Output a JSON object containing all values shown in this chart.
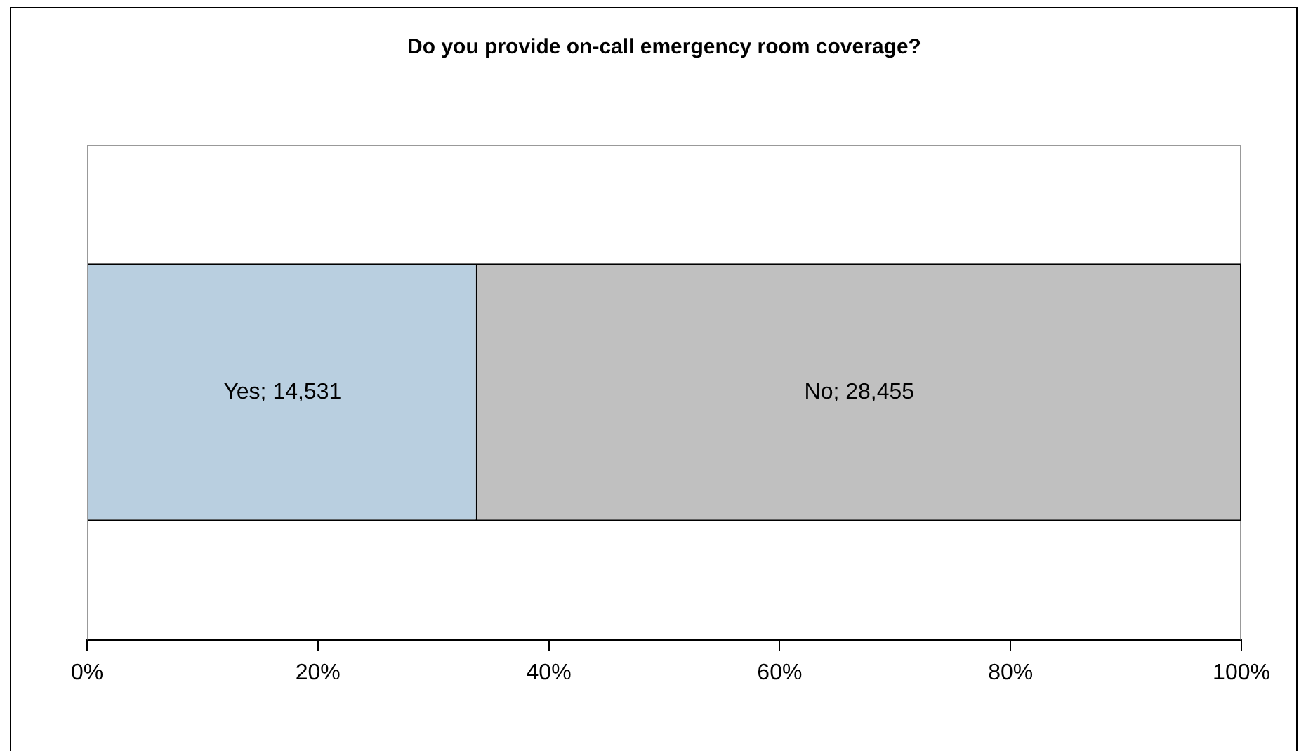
{
  "chart_data": {
    "type": "bar",
    "title": "Do you provide on-call emergency room coverage?",
    "orientation": "horizontal",
    "stacked": true,
    "categories": [
      null
    ],
    "series": [
      {
        "color": "#b9cfe0",
        "values": [
          33.8
        ]
      },
      {
        "color": "#c0c0c0",
        "values": [
          66.2
        ]
      }
    ],
    "annotations": [
      "Yes; 14,531",
      "No; 28,455"
    ],
    "xlim": [
      0,
      100
    ],
    "xticks": [
      {
        "value": 0,
        "label": "0%"
      },
      {
        "value": 20,
        "label": "20%"
      },
      {
        "value": 40,
        "label": "40%"
      },
      {
        "value": 60,
        "label": "60%"
      },
      {
        "value": 80,
        "label": "80%"
      },
      {
        "value": 100,
        "label": "100%"
      }
    ],
    "grid": false,
    "legend": false
  }
}
